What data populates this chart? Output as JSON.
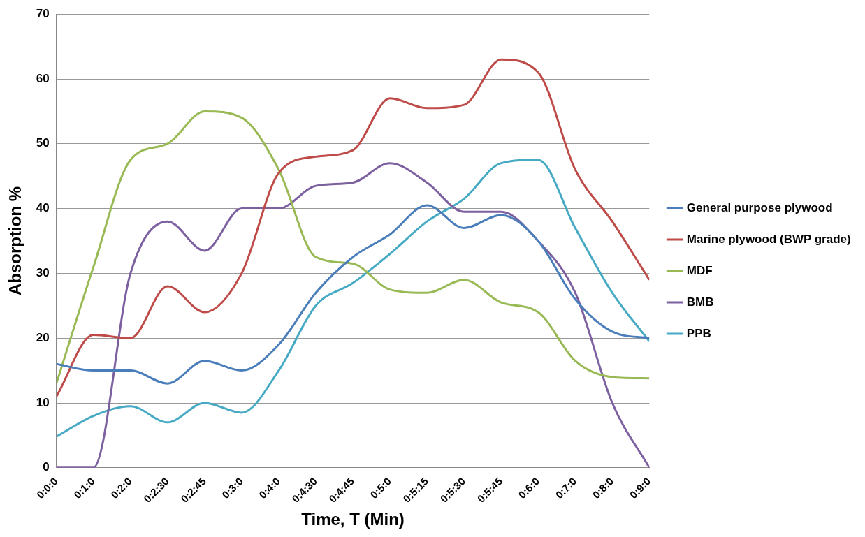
{
  "chart_data": {
    "type": "line",
    "xlabel": "Time, T (Min)",
    "ylabel": "Absorption %",
    "categories": [
      "0:0:0",
      "0:1:0",
      "0:2:0",
      "0:2:30",
      "0:2:45",
      "0:3:0",
      "0:4:0",
      "0:4:30",
      "0:4:45",
      "0:5:0",
      "0:5:15",
      "0:5:30",
      "0:5:45",
      "0:6:0",
      "0:7:0",
      "0:8:0",
      "0:9:0"
    ],
    "series": [
      {
        "name": "General purpose plywood",
        "color": "#4a7ebb",
        "values": [
          16,
          15,
          15,
          13,
          16.5,
          15,
          19,
          27,
          32.5,
          36,
          40.5,
          37,
          39,
          35,
          26,
          21,
          20
        ]
      },
      {
        "name": "Marine plywood (BWP grade)",
        "color": "#be4b48",
        "values": [
          11,
          20.5,
          20,
          28,
          24,
          30,
          45.5,
          48,
          49,
          57,
          55.5,
          56,
          63,
          61,
          46,
          38,
          29
        ]
      },
      {
        "name": "MDF",
        "color": "#98b954",
        "values": [
          13,
          31,
          47.5,
          50,
          55,
          54,
          46,
          32.5,
          31.5,
          27.5,
          27,
          29,
          25.5,
          24,
          16.5,
          14,
          13.8
        ]
      },
      {
        "name": "BMB",
        "color": "#7d60a0",
        "values": [
          0,
          0,
          30,
          38,
          33.5,
          40,
          40,
          43.5,
          44,
          47,
          44,
          39.5,
          39.5,
          35,
          27,
          10,
          0
        ]
      },
      {
        "name": "PPB",
        "color": "#46aac5",
        "values": [
          4.8,
          8,
          9.5,
          7,
          10,
          8.5,
          15,
          25,
          28.5,
          33,
          38,
          41.5,
          47,
          47.5,
          37,
          27,
          19.5
        ]
      }
    ],
    "ylim": [
      0,
      70
    ],
    "yticks": [
      0,
      10,
      20,
      30,
      40,
      50,
      60,
      70
    ],
    "grid": "y",
    "legend": "right"
  }
}
